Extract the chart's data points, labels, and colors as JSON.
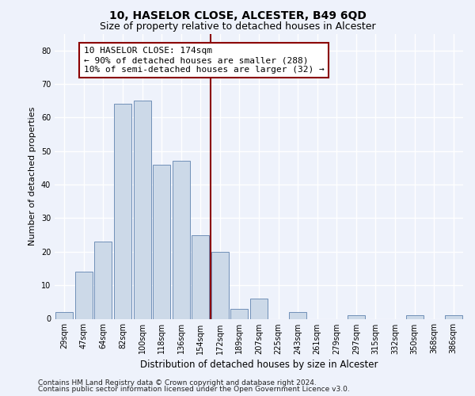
{
  "title1": "10, HASELOR CLOSE, ALCESTER, B49 6QD",
  "title2": "Size of property relative to detached houses in Alcester",
  "xlabel": "Distribution of detached houses by size in Alcester",
  "ylabel": "Number of detached properties",
  "categories": [
    "29sqm",
    "47sqm",
    "64sqm",
    "82sqm",
    "100sqm",
    "118sqm",
    "136sqm",
    "154sqm",
    "172sqm",
    "189sqm",
    "207sqm",
    "225sqm",
    "243sqm",
    "261sqm",
    "279sqm",
    "297sqm",
    "315sqm",
    "332sqm",
    "350sqm",
    "368sqm",
    "386sqm"
  ],
  "values": [
    2,
    14,
    23,
    64,
    65,
    46,
    47,
    25,
    20,
    3,
    6,
    0,
    2,
    0,
    0,
    1,
    0,
    0,
    1,
    0,
    1
  ],
  "bar_color": "#ccd9e8",
  "bar_edge_color": "#7090b8",
  "vline_x": 7.5,
  "vline_color": "#8b0000",
  "annotation_text": "10 HASELOR CLOSE: 174sqm\n← 90% of detached houses are smaller (288)\n10% of semi-detached houses are larger (32) →",
  "annotation_box_color": "#ffffff",
  "annotation_box_edge": "#8b0000",
  "ylim": [
    0,
    85
  ],
  "yticks": [
    0,
    10,
    20,
    30,
    40,
    50,
    60,
    70,
    80
  ],
  "footnote1": "Contains HM Land Registry data © Crown copyright and database right 2024.",
  "footnote2": "Contains public sector information licensed under the Open Government Licence v3.0.",
  "background_color": "#eef2fb",
  "grid_color": "#ffffff",
  "title1_fontsize": 10,
  "title2_fontsize": 9,
  "xlabel_fontsize": 8.5,
  "ylabel_fontsize": 8,
  "tick_fontsize": 7,
  "annotation_fontsize": 8,
  "footnote_fontsize": 6.5
}
